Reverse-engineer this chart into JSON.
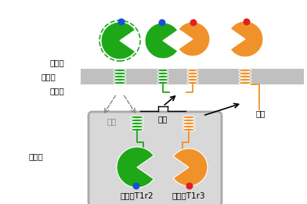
{
  "green_color": "#1ea818",
  "orange_color": "#f0922a",
  "blue_color": "#1a4fd6",
  "red_color": "#e02020",
  "gray_membrane": "#c0c0c0",
  "er_box_color": "#d8d8d8",
  "er_box_edge": "#aaaaaa",
  "label_saibogai": "細胞外",
  "label_saibomaku": "細胞膜",
  "label_saibonai": "細胞内",
  "label_er": "小胞体",
  "label_t1r2": "マウスT1r2",
  "label_t1r3": "マウスT1r3",
  "label_tandoku": "単独",
  "label_kyozon": "共存",
  "bg_color": "#ffffff"
}
